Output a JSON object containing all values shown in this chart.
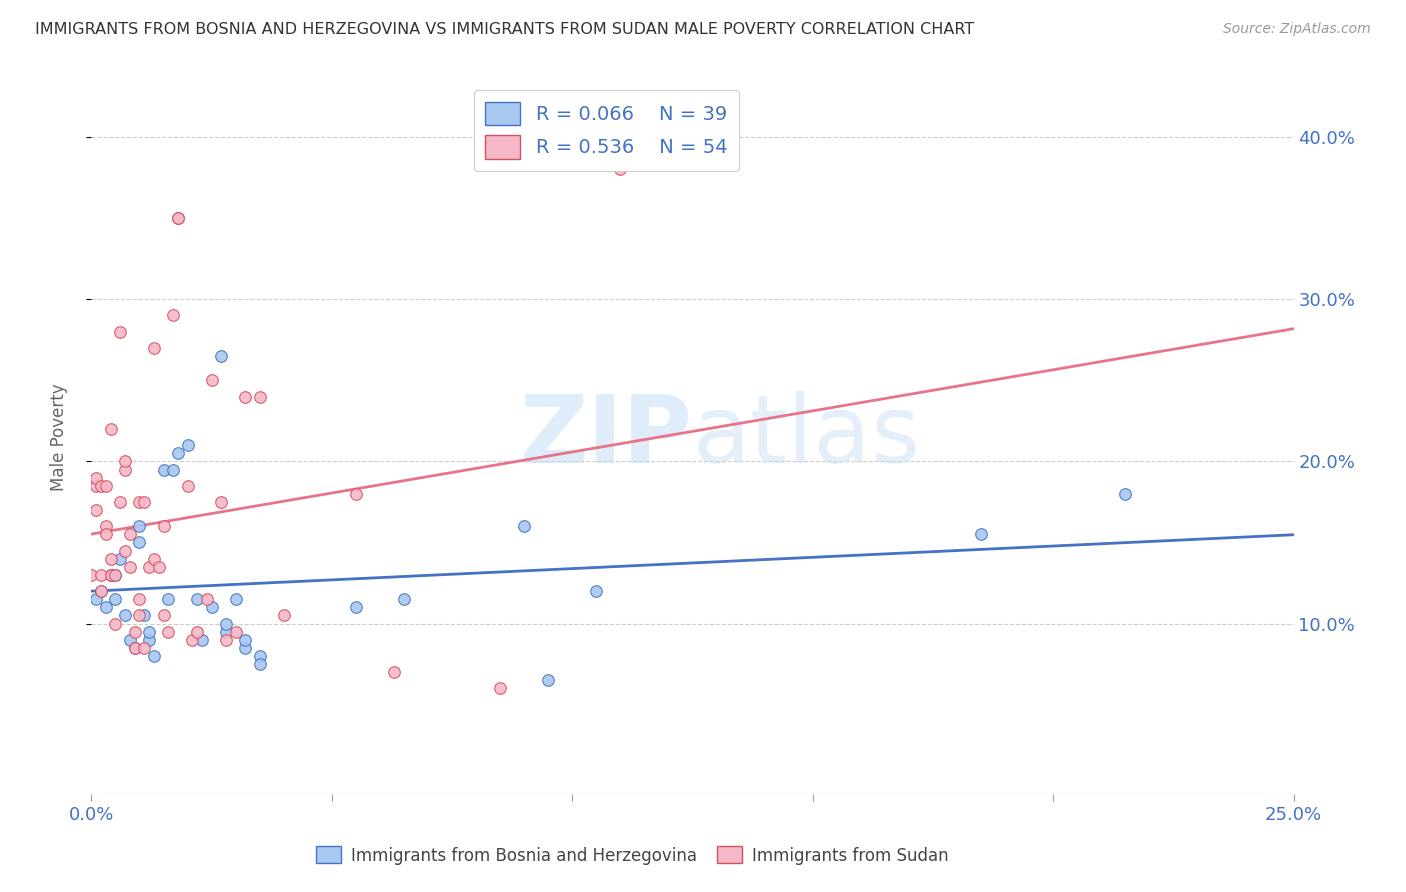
{
  "title": "IMMIGRANTS FROM BOSNIA AND HERZEGOVINA VS IMMIGRANTS FROM SUDAN MALE POVERTY CORRELATION CHART",
  "source": "Source: ZipAtlas.com",
  "ylabel": "Male Poverty",
  "xlim": [
    0.0,
    0.25
  ],
  "ylim": [
    -0.005,
    0.435
  ],
  "legend_bosnia_R": "R = 0.066",
  "legend_bosnia_N": "N = 39",
  "legend_sudan_R": "R = 0.536",
  "legend_sudan_N": "N = 54",
  "legend_label_bosnia": "Immigrants from Bosnia and Herzegovina",
  "legend_label_sudan": "Immigrants from Sudan",
  "color_bosnia": "#a8c8f0",
  "color_sudan": "#f5b8c8",
  "color_bosnia_line": "#4472c4",
  "color_sudan_line": "#e8748a",
  "color_sudan_line_dark": "#d45060",
  "background_color": "#ffffff",
  "bosnia_x": [
    0.001,
    0.002,
    0.003,
    0.004,
    0.005,
    0.005,
    0.006,
    0.007,
    0.008,
    0.009,
    0.01,
    0.01,
    0.011,
    0.012,
    0.012,
    0.013,
    0.015,
    0.016,
    0.017,
    0.018,
    0.02,
    0.022,
    0.023,
    0.025,
    0.027,
    0.028,
    0.028,
    0.03,
    0.032,
    0.032,
    0.035,
    0.035,
    0.055,
    0.065,
    0.09,
    0.095,
    0.105,
    0.185,
    0.215
  ],
  "bosnia_y": [
    0.115,
    0.12,
    0.11,
    0.13,
    0.115,
    0.13,
    0.14,
    0.105,
    0.09,
    0.085,
    0.15,
    0.16,
    0.105,
    0.09,
    0.095,
    0.08,
    0.195,
    0.115,
    0.195,
    0.205,
    0.21,
    0.115,
    0.09,
    0.11,
    0.265,
    0.095,
    0.1,
    0.115,
    0.085,
    0.09,
    0.08,
    0.075,
    0.11,
    0.115,
    0.16,
    0.065,
    0.12,
    0.155,
    0.18
  ],
  "sudan_x": [
    0.0,
    0.001,
    0.001,
    0.001,
    0.002,
    0.002,
    0.002,
    0.003,
    0.003,
    0.003,
    0.004,
    0.004,
    0.004,
    0.005,
    0.005,
    0.006,
    0.006,
    0.007,
    0.007,
    0.007,
    0.008,
    0.008,
    0.009,
    0.009,
    0.01,
    0.01,
    0.01,
    0.011,
    0.011,
    0.012,
    0.013,
    0.013,
    0.014,
    0.015,
    0.015,
    0.016,
    0.017,
    0.018,
    0.018,
    0.02,
    0.021,
    0.022,
    0.024,
    0.025,
    0.027,
    0.028,
    0.03,
    0.032,
    0.035,
    0.04,
    0.055,
    0.063,
    0.085,
    0.11
  ],
  "sudan_y": [
    0.13,
    0.185,
    0.19,
    0.17,
    0.12,
    0.13,
    0.185,
    0.185,
    0.16,
    0.155,
    0.13,
    0.14,
    0.22,
    0.13,
    0.1,
    0.28,
    0.175,
    0.145,
    0.195,
    0.2,
    0.135,
    0.155,
    0.085,
    0.095,
    0.105,
    0.115,
    0.175,
    0.085,
    0.175,
    0.135,
    0.27,
    0.14,
    0.135,
    0.16,
    0.105,
    0.095,
    0.29,
    0.35,
    0.35,
    0.185,
    0.09,
    0.095,
    0.115,
    0.25,
    0.175,
    0.09,
    0.095,
    0.24,
    0.24,
    0.105,
    0.18,
    0.07,
    0.06,
    0.38
  ]
}
